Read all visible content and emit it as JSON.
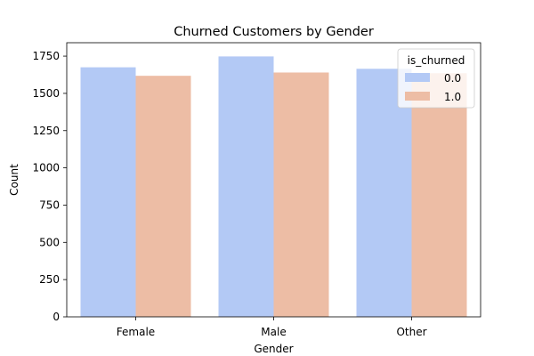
{
  "chart_data": {
    "type": "bar",
    "title": "Churned Customers by Gender",
    "xlabel": "Gender",
    "ylabel": "Count",
    "categories": [
      "Female",
      "Male",
      "Other"
    ],
    "series": [
      {
        "name": "0.0",
        "values": [
          1675,
          1748,
          1665
        ],
        "color": "#b3c9f5"
      },
      {
        "name": "1.0",
        "values": [
          1618,
          1640,
          1635
        ],
        "color": "#edbda5"
      }
    ],
    "ylim": [
      0,
      1840
    ],
    "yticks": [
      0,
      250,
      500,
      750,
      1000,
      1250,
      1500,
      1750
    ],
    "grid": false,
    "legend": {
      "title": "is_churned",
      "placement": "top-right"
    }
  }
}
